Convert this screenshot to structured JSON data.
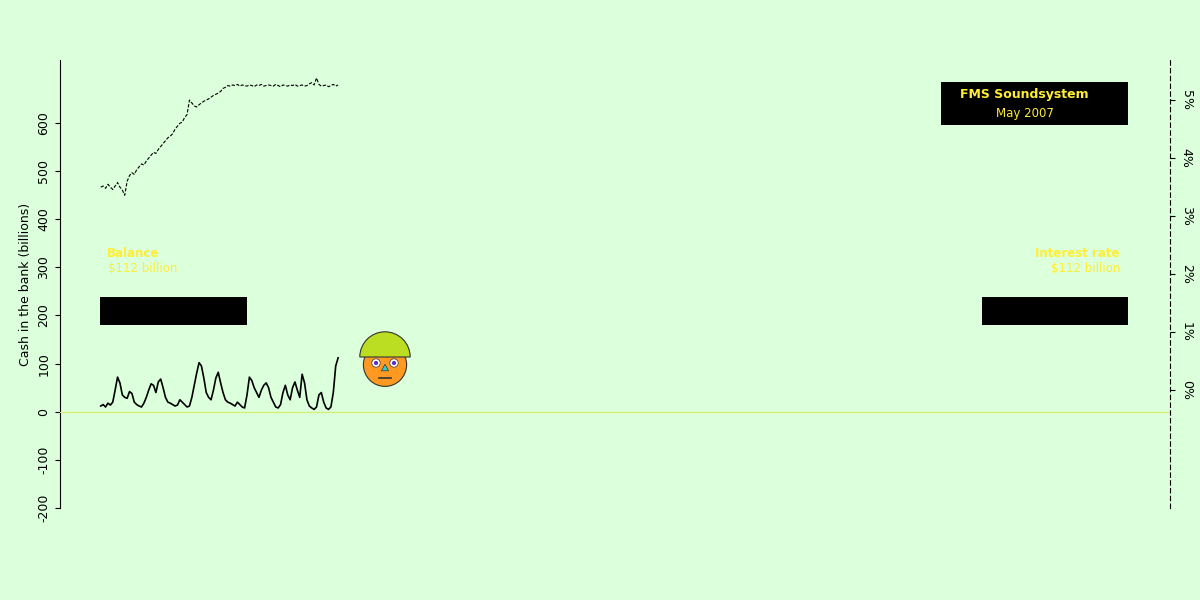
{
  "chart_data": {
    "type": "line",
    "title": "FMS Soundsystem",
    "subtitle": "May 2007",
    "y_label": "Cash in the bank (billions)",
    "xlim": [
      -17,
      446
    ],
    "ylim": [
      -200,
      730
    ],
    "yticks": [
      -200,
      -100,
      0,
      100,
      200,
      300,
      400,
      500,
      600
    ],
    "y2lim": [
      -2.03,
      5.69
    ],
    "y2ticks": [
      {
        "value": 0,
        "label": "0%"
      },
      {
        "value": 1,
        "label": "1%"
      },
      {
        "value": 2,
        "label": "2%"
      },
      {
        "value": 3,
        "label": "3%"
      },
      {
        "value": 4,
        "label": "4%"
      },
      {
        "value": 5,
        "label": "5%"
      }
    ],
    "baseline": 0,
    "tick_labels": "y",
    "series": [
      {
        "name": "Balance",
        "annotation": "$112 billion",
        "color": "#000000",
        "line_style": "solid",
        "values": [
          12,
          15,
          10,
          18,
          14,
          20,
          45,
          72,
          60,
          35,
          30,
          28,
          42,
          38,
          20,
          15,
          12,
          10,
          18,
          30,
          45,
          58,
          55,
          40,
          62,
          68,
          50,
          30,
          20,
          18,
          15,
          12,
          14,
          25,
          20,
          15,
          10,
          12,
          30,
          55,
          80,
          102,
          95,
          70,
          40,
          30,
          25,
          45,
          70,
          82,
          60,
          40,
          25,
          20,
          18,
          15,
          12,
          20,
          15,
          10,
          8,
          35,
          72,
          65,
          50,
          40,
          30,
          45,
          55,
          60,
          50,
          30,
          20,
          10,
          8,
          15,
          40,
          55,
          35,
          25,
          50,
          62,
          45,
          30,
          78,
          60,
          25,
          12,
          8,
          5,
          10,
          35,
          40,
          20,
          8,
          5,
          10,
          40,
          95,
          112
        ]
      },
      {
        "name": "Interest rate",
        "annotation": "$112 billion",
        "color": "#000000",
        "line_style": "dashed",
        "axis": "y2",
        "values": [
          3.5,
          3.52,
          3.48,
          3.55,
          3.5,
          3.46,
          3.52,
          3.58,
          3.5,
          3.45,
          3.36,
          3.6,
          3.7,
          3.75,
          3.72,
          3.8,
          3.85,
          3.9,
          3.88,
          3.95,
          4.0,
          4.05,
          4.1,
          4.08,
          4.15,
          4.2,
          4.25,
          4.3,
          4.35,
          4.38,
          4.42,
          4.5,
          4.55,
          4.6,
          4.62,
          4.7,
          4.75,
          5.0,
          4.95,
          4.9,
          4.88,
          4.92,
          4.95,
          4.98,
          5.0,
          5.02,
          5.05,
          5.08,
          5.1,
          5.12,
          5.15,
          5.2,
          5.22,
          5.25,
          5.24,
          5.26,
          5.25,
          5.27,
          5.24,
          5.26,
          5.25,
          5.24,
          5.26,
          5.25,
          5.23,
          5.26,
          5.25,
          5.27,
          5.24,
          5.25,
          5.26,
          5.25,
          5.24,
          5.27,
          5.25,
          5.23,
          5.26,
          5.25,
          5.24,
          5.26,
          5.25,
          5.27,
          5.24,
          5.25,
          5.26,
          5.24,
          5.25,
          5.28,
          5.3,
          5.26,
          5.38,
          5.27,
          5.24,
          5.25,
          5.26,
          5.23,
          5.25,
          5.27,
          5.24,
          5.26
        ]
      }
    ]
  }
}
